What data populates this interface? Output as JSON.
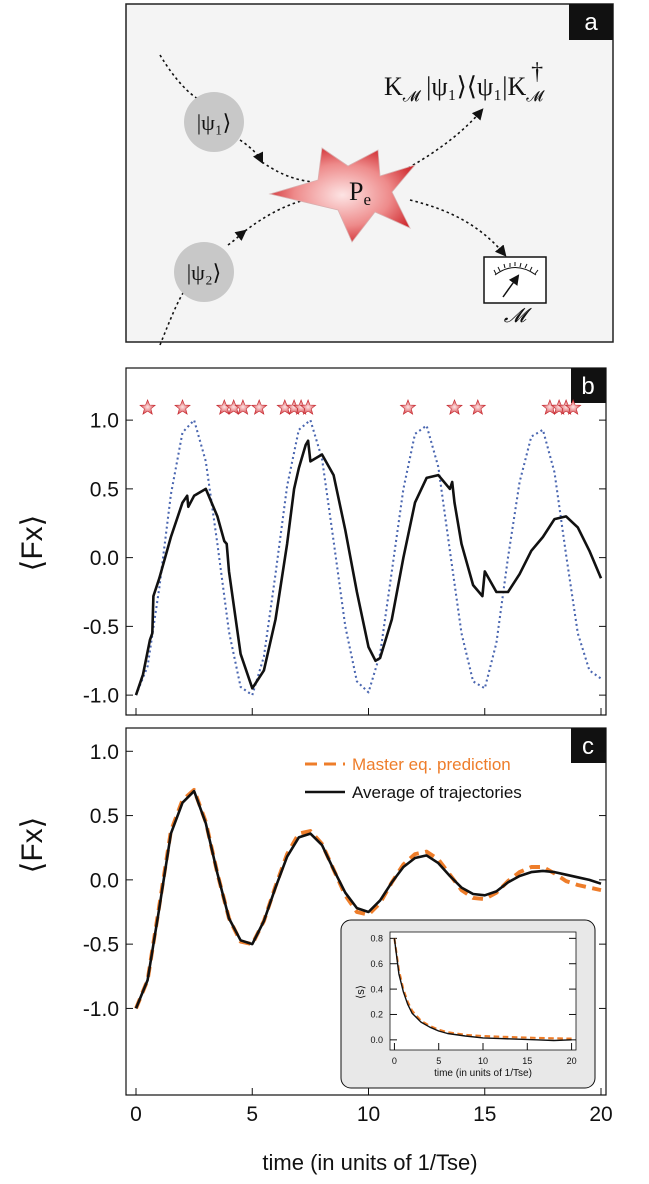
{
  "panels": {
    "a": {
      "letter": "a",
      "state1": "ψ₁",
      "state2": "ψ₂",
      "process": "P",
      "process_sub": "e",
      "output_K": "K",
      "output_M": "𝓜",
      "output_state": "ψ₁",
      "output_dagger": "†",
      "meter_label": "𝓜"
    },
    "b": {
      "letter": "b"
    },
    "c": {
      "letter": "c"
    }
  },
  "chart_data": [
    {
      "id": "panel-b",
      "type": "line",
      "ylabel": "⟨Fx⟩",
      "xlim": [
        0,
        20
      ],
      "ylim": [
        -1.05,
        1.35
      ],
      "y_ticks": [
        "1.0",
        "0.5",
        "0.0",
        "-0.5",
        "-1.0"
      ],
      "y_tick_values": [
        1.0,
        0.5,
        0.0,
        -0.5,
        -1.0
      ],
      "series": [
        {
          "style": "dotted",
          "color": "#4a66b0",
          "x": [
            0,
            0.5,
            1,
            1.5,
            2,
            2.5,
            3,
            3.5,
            4,
            4.5,
            5,
            5.5,
            6,
            6.5,
            7,
            7.5,
            8,
            8.5,
            9,
            9.5,
            10,
            10.5,
            11,
            11.5,
            12,
            12.5,
            13,
            13.5,
            14,
            14.5,
            15,
            15.5,
            16,
            16.5,
            17,
            17.5,
            18,
            18.5,
            19,
            19.5,
            20
          ],
          "y": [
            -1.0,
            -0.79,
            -0.22,
            0.46,
            0.91,
            1.0,
            0.7,
            0.1,
            -0.54,
            -0.94,
            -1.0,
            -0.72,
            -0.12,
            0.52,
            0.93,
            1.0,
            0.72,
            0.12,
            -0.5,
            -0.9,
            -0.98,
            -0.7,
            -0.1,
            0.5,
            0.9,
            0.96,
            0.66,
            0.05,
            -0.55,
            -0.9,
            -0.95,
            -0.62,
            0.0,
            0.55,
            0.88,
            0.93,
            0.62,
            0.02,
            -0.55,
            -0.82,
            -0.88
          ]
        },
        {
          "style": "solid",
          "color": "#111111",
          "x": [
            0,
            0.3,
            0.6,
            0.7,
            0.75,
            1,
            1.5,
            2,
            2.2,
            2.25,
            2.5,
            3,
            3.5,
            3.8,
            3.9,
            4,
            4.5,
            5,
            5.5,
            6,
            6.5,
            6.8,
            7,
            7.3,
            7.4,
            7.5,
            8,
            8.5,
            9,
            9.5,
            10,
            10.3,
            10.5,
            11,
            11.5,
            12,
            12.5,
            13,
            13.5,
            13.6,
            13.7,
            14,
            14.5,
            14.9,
            15,
            15.5,
            16,
            16.5,
            17,
            17.5,
            18,
            18.5,
            19,
            19.5,
            20
          ],
          "y": [
            -1.0,
            -0.85,
            -0.6,
            -0.55,
            -0.28,
            -0.15,
            0.15,
            0.4,
            0.45,
            0.37,
            0.45,
            0.5,
            0.3,
            0.12,
            0.1,
            -0.1,
            -0.7,
            -0.95,
            -0.82,
            -0.45,
            0.1,
            0.5,
            0.65,
            0.82,
            0.85,
            0.7,
            0.75,
            0.6,
            0.2,
            -0.25,
            -0.65,
            -0.75,
            -0.73,
            -0.45,
            0.0,
            0.4,
            0.58,
            0.6,
            0.5,
            0.55,
            0.4,
            0.1,
            -0.2,
            -0.28,
            -0.1,
            -0.25,
            -0.25,
            -0.12,
            0.05,
            0.15,
            0.28,
            0.3,
            0.22,
            0.05,
            -0.15
          ]
        }
      ],
      "markers": {
        "y": 1.09,
        "x": [
          0.5,
          2.0,
          3.8,
          4.2,
          4.6,
          5.3,
          6.4,
          6.8,
          7.1,
          7.4,
          11.7,
          13.7,
          14.7,
          17.8,
          18.2,
          18.5,
          18.8
        ]
      }
    },
    {
      "id": "panel-c",
      "type": "line",
      "ylabel": "⟨Fx⟩",
      "xlabel": "time (in units of 1/Tse)",
      "xlim": [
        0,
        20
      ],
      "ylim": [
        -1.65,
        1.15
      ],
      "x_ticks": [
        "0",
        "5",
        "10",
        "15",
        "20"
      ],
      "x_tick_values": [
        0,
        5,
        10,
        15,
        20
      ],
      "y_ticks": [
        "1.0",
        "0.5",
        "0.0",
        "-0.5",
        "-1.0"
      ],
      "y_tick_values": [
        1.0,
        0.5,
        0.0,
        -0.5,
        -1.0
      ],
      "legend": [
        "Master eq. prediction",
        "Average of trajectories"
      ],
      "series": [
        {
          "name": "Master eq. prediction",
          "style": "dashed",
          "color": "#ee7d2a",
          "x": [
            0,
            0.5,
            1,
            1.5,
            2,
            2.5,
            3,
            3.5,
            4,
            4.5,
            5,
            5.5,
            6,
            6.5,
            7,
            7.5,
            8,
            8.5,
            9,
            9.5,
            10,
            10.5,
            11,
            11.5,
            12,
            12.5,
            13,
            13.5,
            14,
            14.5,
            15,
            15.5,
            16,
            16.5,
            17,
            17.5,
            18,
            18.5,
            19,
            19.5,
            20
          ],
          "y": [
            -1.0,
            -0.78,
            -0.2,
            0.38,
            0.62,
            0.7,
            0.45,
            0.05,
            -0.3,
            -0.48,
            -0.5,
            -0.32,
            -0.05,
            0.2,
            0.36,
            0.38,
            0.28,
            0.08,
            -0.12,
            -0.25,
            -0.27,
            -0.18,
            -0.02,
            0.12,
            0.2,
            0.22,
            0.16,
            0.04,
            -0.08,
            -0.14,
            -0.15,
            -0.1,
            -0.01,
            0.06,
            0.1,
            0.1,
            0.05,
            -0.01,
            -0.04,
            -0.06,
            -0.08
          ]
        },
        {
          "name": "Average of trajectories",
          "style": "solid",
          "color": "#111111",
          "x": [
            0,
            0.5,
            1,
            1.5,
            2,
            2.5,
            3,
            3.5,
            4,
            4.5,
            5,
            5.5,
            6,
            6.5,
            7,
            7.5,
            8,
            8.5,
            9,
            9.5,
            10,
            10.5,
            11,
            11.5,
            12,
            12.5,
            13,
            13.5,
            14,
            14.5,
            15,
            15.5,
            16,
            16.5,
            17,
            17.5,
            18,
            18.5,
            19,
            19.5,
            20
          ],
          "y": [
            -1.0,
            -0.78,
            -0.22,
            0.36,
            0.6,
            0.69,
            0.44,
            0.05,
            -0.3,
            -0.47,
            -0.5,
            -0.32,
            -0.06,
            0.18,
            0.33,
            0.36,
            0.27,
            0.08,
            -0.1,
            -0.22,
            -0.25,
            -0.16,
            -0.02,
            0.1,
            0.17,
            0.19,
            0.13,
            0.03,
            -0.06,
            -0.11,
            -0.12,
            -0.09,
            -0.02,
            0.03,
            0.06,
            0.07,
            0.06,
            0.04,
            0.02,
            0.0,
            -0.03
          ]
        }
      ]
    },
    {
      "id": "inset",
      "type": "line",
      "ylabel": "⟨s⟩",
      "xlabel": "time (in units of 1/Tse)",
      "xlim": [
        -0.5,
        20.5
      ],
      "ylim": [
        -0.08,
        0.85
      ],
      "x_ticks": [
        "0",
        "5",
        "10",
        "15",
        "20"
      ],
      "x_tick_values": [
        0,
        5,
        10,
        15,
        20
      ],
      "y_ticks": [
        "0.8",
        "0.6",
        "0.4",
        "0.2",
        "0.0"
      ],
      "y_tick_values": [
        0.8,
        0.6,
        0.4,
        0.2,
        0.0
      ],
      "series": [
        {
          "name": "Master eq. prediction",
          "style": "dashed",
          "color": "#ee7d2a",
          "x": [
            0,
            0.5,
            1,
            1.5,
            2,
            3,
            4,
            5,
            6,
            8,
            10,
            12,
            14,
            16,
            18,
            20
          ],
          "y": [
            0.8,
            0.55,
            0.4,
            0.3,
            0.23,
            0.15,
            0.11,
            0.08,
            0.06,
            0.04,
            0.03,
            0.025,
            0.02,
            0.015,
            0.012,
            0.01
          ]
        },
        {
          "name": "Average of trajectories",
          "style": "solid",
          "color": "#111111",
          "x": [
            0,
            0.5,
            1,
            1.5,
            2,
            3,
            4,
            5,
            6,
            8,
            10,
            12,
            14,
            16,
            18,
            20
          ],
          "y": [
            0.8,
            0.52,
            0.38,
            0.28,
            0.21,
            0.14,
            0.1,
            0.07,
            0.05,
            0.03,
            0.015,
            0.01,
            0.005,
            0.0,
            -0.005,
            0.0
          ]
        }
      ]
    }
  ]
}
